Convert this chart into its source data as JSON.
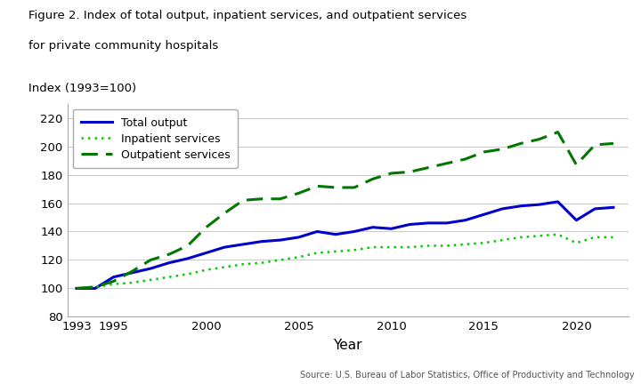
{
  "title_line1": "Figure 2. Index of total output, inpatient services, and outpatient services",
  "title_line2": "for private community hospitals",
  "ylabel_label": "Index (1993=100)",
  "xlabel": "Year",
  "source": "Source: U.S. Bureau of Labor Statistics, Office of Productivity and Technology",
  "ylim": [
    80,
    230
  ],
  "yticks": [
    80,
    100,
    120,
    140,
    160,
    180,
    200,
    220
  ],
  "xlim": [
    1992.5,
    2022.8
  ],
  "xticks": [
    1993,
    1995,
    2000,
    2005,
    2010,
    2015,
    2020
  ],
  "years": [
    1993,
    1994,
    1995,
    1996,
    1997,
    1998,
    1999,
    2000,
    2001,
    2002,
    2003,
    2004,
    2005,
    2006,
    2007,
    2008,
    2009,
    2010,
    2011,
    2012,
    2013,
    2014,
    2015,
    2016,
    2017,
    2018,
    2019,
    2020,
    2021,
    2022
  ],
  "total_output": [
    100,
    100,
    108,
    111,
    114,
    118,
    121,
    125,
    129,
    131,
    133,
    134,
    136,
    140,
    138,
    140,
    143,
    142,
    145,
    146,
    146,
    148,
    152,
    156,
    158,
    159,
    161,
    148,
    156,
    157
  ],
  "inpatient": [
    100,
    101,
    103,
    104,
    106,
    108,
    110,
    113,
    115,
    117,
    118,
    120,
    122,
    125,
    126,
    127,
    129,
    129,
    129,
    130,
    130,
    131,
    132,
    134,
    136,
    137,
    138,
    132,
    136,
    136
  ],
  "outpatient": [
    100,
    101,
    105,
    112,
    120,
    124,
    130,
    143,
    153,
    162,
    163,
    163,
    167,
    172,
    171,
    171,
    177,
    181,
    182,
    185,
    188,
    191,
    196,
    198,
    202,
    205,
    210,
    187,
    201,
    202
  ],
  "total_color": "#0000cc",
  "inpatient_color": "#00cc00",
  "outpatient_color": "#007700",
  "total_linewidth": 2.2,
  "inpatient_linewidth": 1.8,
  "outpatient_linewidth": 2.2,
  "grid_color": "#cccccc",
  "bg_color": "#ffffff"
}
